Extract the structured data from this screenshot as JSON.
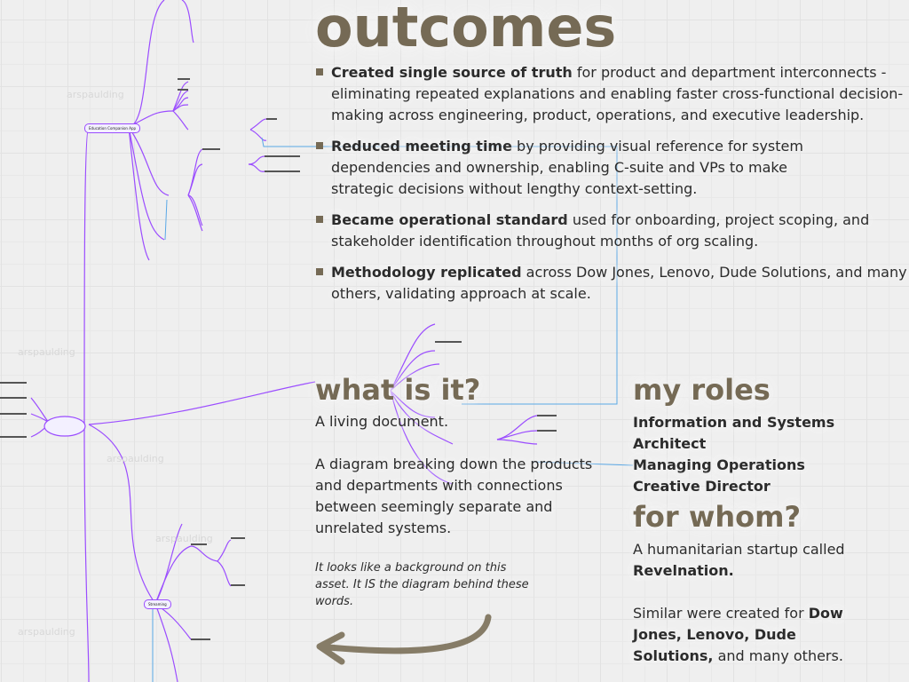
{
  "background_map": {
    "watermark": "arspaulding",
    "nodes": [
      "Education Companion App",
      "Streaming"
    ],
    "line_color": "#9b4dff",
    "link_color": "#5aa8e6"
  },
  "outcomes": {
    "title": "outcomes",
    "items": [
      {
        "bold": "Created single source of truth",
        "text": " for product and department interconnects - eliminating repeated explanations and enabling faster cross-functional decision-making across engineering, product, operations, and executive leadership."
      },
      {
        "bold": "Reduced meeting time",
        "text": " by providing visual reference for system dependencies and ownership, enabling C-suite and VPs to make strategic decisions without lengthy context-setting."
      },
      {
        "bold": "Became operational standard",
        "text": " used for onboarding, project scoping, and stakeholder identification throughout months of org scaling."
      },
      {
        "bold": "Methodology replicated",
        "text": " across Dow Jones, Lenovo, Dude Solutions, and many others, validating approach at scale."
      }
    ]
  },
  "what_is_it": {
    "title": "what is it?",
    "line1": "A living document.",
    "line2": "A diagram breaking down the products and departments with connections between seemingly separate and unrelated systems.",
    "note": "It looks like a background on this asset.  It IS the diagram behind these words."
  },
  "my_roles": {
    "title": "my roles",
    "roles": [
      "Information and Systems Architect",
      "Managing Operations",
      "Creative Director"
    ]
  },
  "for_whom": {
    "title": "for whom?",
    "text": "A humanitarian startup called ",
    "client": "Revelnation.",
    "similar": "Similar were created for ",
    "similar_bold": "Dow Jones, Lenovo, Dude Solutions,",
    "similar_end": " and many others."
  },
  "colors": {
    "heading": "#756a55",
    "text": "#2b2b2b",
    "arrow": "#7a6f58"
  }
}
